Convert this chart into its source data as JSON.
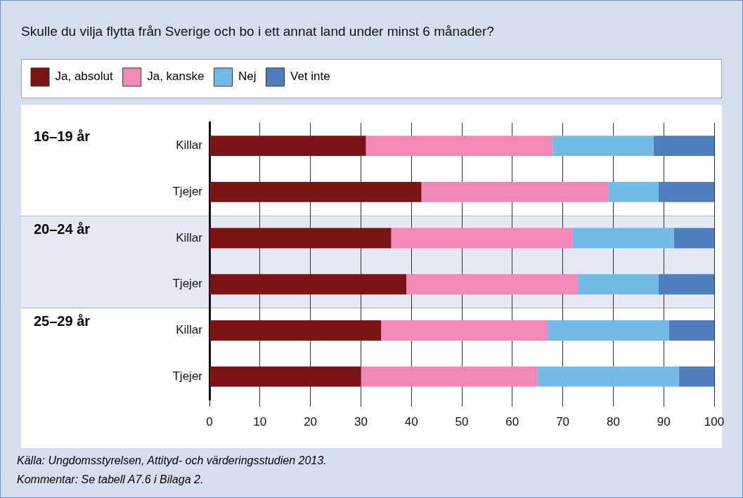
{
  "chart_data": {
    "type": "bar",
    "orientation": "horizontal",
    "stacked": true,
    "title": "Skulle du vilja flytta från Sverige och bo i ett annat land under minst 6 månader?",
    "categories": [
      "Killar",
      "Tjejer",
      "Killar",
      "Tjejer",
      "Killar",
      "Tjejer"
    ],
    "series": [
      {
        "name": "Ja, absolut",
        "color": "#7b1416",
        "values": [
          31,
          42,
          36,
          39,
          34,
          30
        ]
      },
      {
        "name": "Ja, kanske",
        "color": "#f288b6",
        "values": [
          37,
          37,
          36,
          34,
          33,
          35
        ]
      },
      {
        "name": "Nej",
        "color": "#72bbe6",
        "values": [
          20,
          10,
          20,
          16,
          24,
          28
        ]
      },
      {
        "name": "Vet inte",
        "color": "#4f7fbf",
        "values": [
          12,
          11,
          8,
          11,
          9,
          7
        ]
      }
    ],
    "xlim": [
      0,
      100
    ],
    "xticks": [
      0,
      10,
      20,
      30,
      40,
      50,
      60,
      70,
      80,
      90,
      100
    ],
    "grid": "x",
    "legend": "top left",
    "annotations": [
      "16–19 år",
      "20–24 år",
      "25–29 år",
      "Källa: Ungdomsstyrelsen, Attityd- och värderingsstudien 2013.",
      "Kommentar: Se tabell A7.6 i Bilaga 2."
    ]
  }
}
